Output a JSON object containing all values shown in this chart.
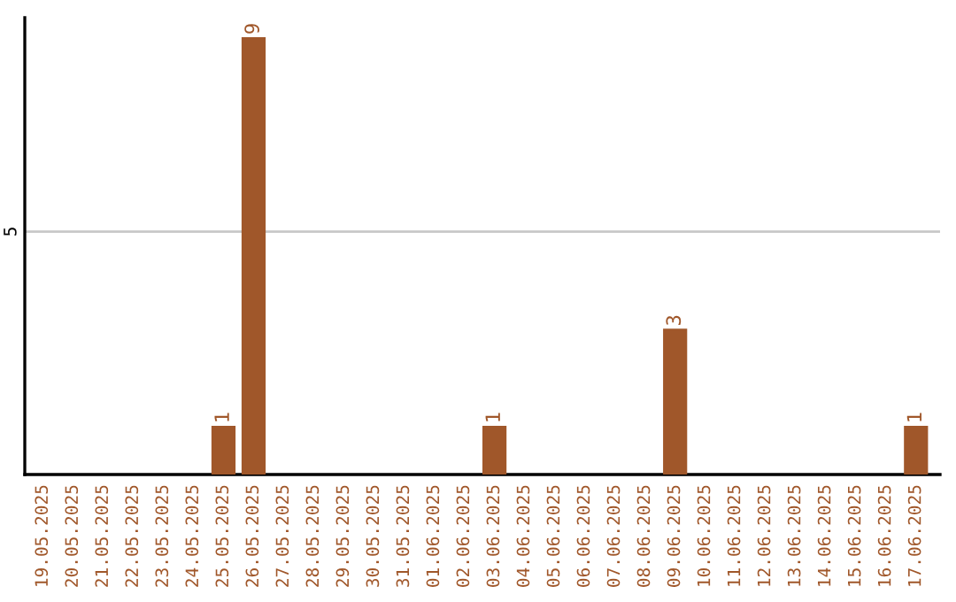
{
  "chart_data": {
    "type": "bar",
    "categories": [
      "19.05.2025",
      "20.05.2025",
      "21.05.2025",
      "22.05.2025",
      "23.05.2025",
      "24.05.2025",
      "25.05.2025",
      "26.05.2025",
      "27.05.2025",
      "28.05.2025",
      "29.05.2025",
      "30.05.2025",
      "31.05.2025",
      "01.06.2025",
      "02.06.2025",
      "03.06.2025",
      "04.06.2025",
      "05.06.2025",
      "06.06.2025",
      "07.06.2025",
      "08.06.2025",
      "09.06.2025",
      "10.06.2025",
      "11.06.2025",
      "12.06.2025",
      "13.06.2025",
      "14.06.2025",
      "15.06.2025",
      "16.06.2025",
      "17.06.2025"
    ],
    "values": [
      0,
      0,
      0,
      0,
      0,
      0,
      1,
      9,
      0,
      0,
      0,
      0,
      0,
      0,
      0,
      1,
      0,
      0,
      0,
      0,
      0,
      3,
      0,
      0,
      0,
      0,
      0,
      0,
      0,
      1
    ],
    "value_labels": [
      null,
      null,
      null,
      null,
      null,
      null,
      "1",
      "9",
      null,
      null,
      null,
      null,
      null,
      null,
      null,
      "1",
      null,
      null,
      null,
      null,
      null,
      "3",
      null,
      null,
      null,
      null,
      null,
      null,
      null,
      "1"
    ],
    "color": "#a0572a",
    "ylim": [
      0,
      9.4
    ],
    "yticks": [
      5
    ],
    "grid": "y",
    "legend": false
  }
}
